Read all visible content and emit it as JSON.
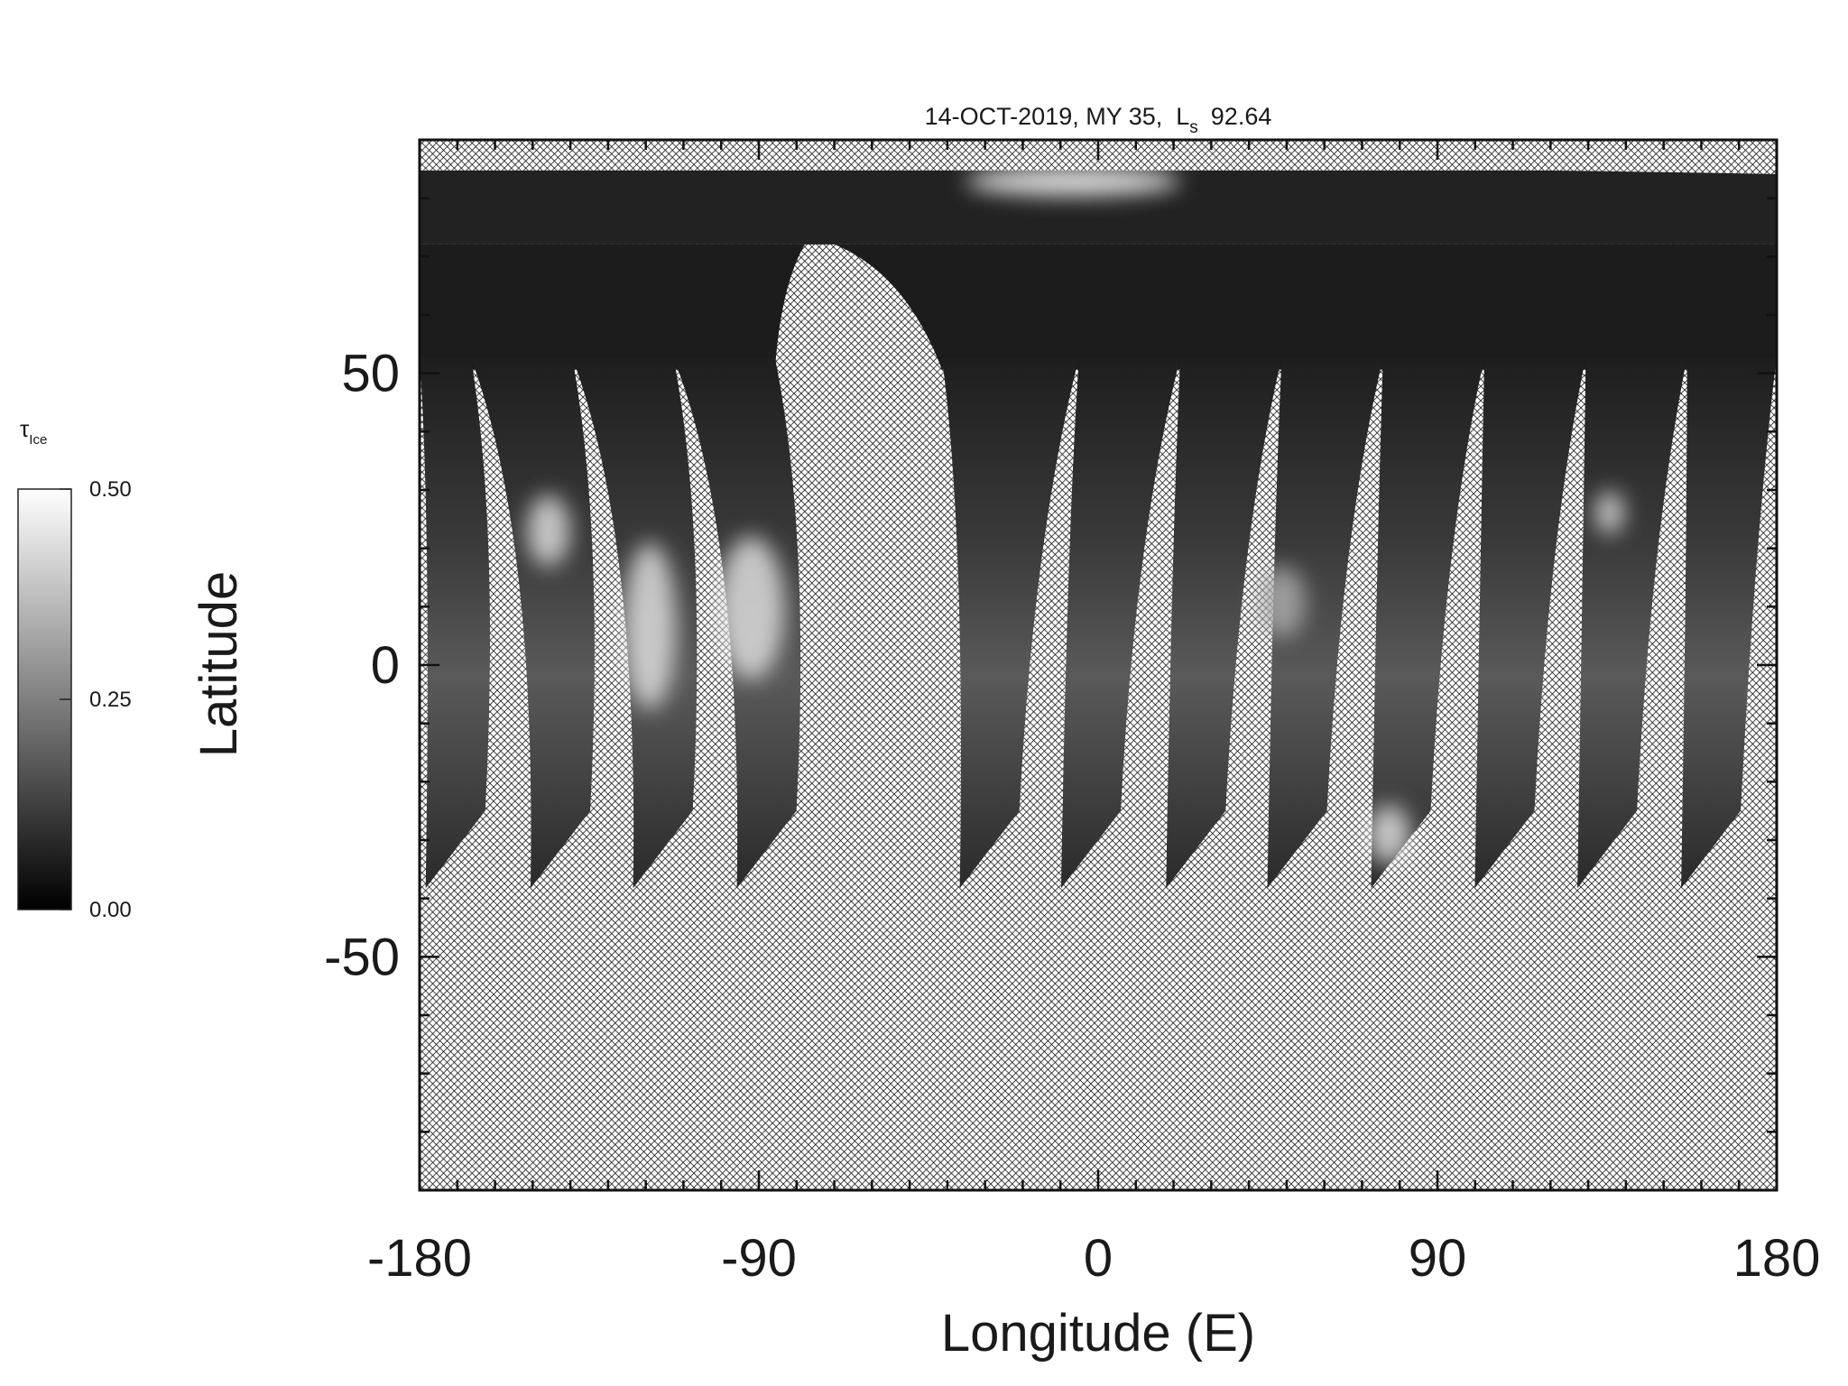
{
  "chart_data": {
    "type": "map",
    "title": "14-OCT-2019, MY 35,  L",
    "title_subscript": "s",
    "title_suffix": "92.64",
    "xlabel": "Longitude (E)",
    "ylabel": "Latitude",
    "xlim": [
      -180,
      180
    ],
    "xticks": [
      -180,
      -90,
      0,
      90,
      180
    ],
    "xminorticks": [
      -170,
      -160,
      -150,
      -140,
      -130,
      -120,
      -110,
      -100,
      -80,
      -70,
      -60,
      -50,
      -40,
      -30,
      -20,
      -10,
      10,
      20,
      30,
      40,
      50,
      60,
      70,
      80,
      100,
      110,
      120,
      130,
      140,
      150,
      160,
      170
    ],
    "ylim": [
      -90,
      90
    ],
    "yticks": [
      -50,
      0,
      50
    ],
    "yminorticks": [
      -80,
      -70,
      -60,
      -40,
      -30,
      -20,
      -10,
      10,
      20,
      30,
      40,
      60,
      70,
      80
    ],
    "colorbar": {
      "label": "τ",
      "label_subscript": "Ice",
      "clim": [
        0,
        0.5
      ],
      "ticks": [
        {
          "value": 0,
          "label": "0.00"
        },
        {
          "value": 0.25,
          "label": "0.25"
        },
        {
          "value": 0.5,
          "label": "0.50"
        }
      ],
      "colors": [
        "#000000",
        "#ffffff"
      ]
    }
  }
}
